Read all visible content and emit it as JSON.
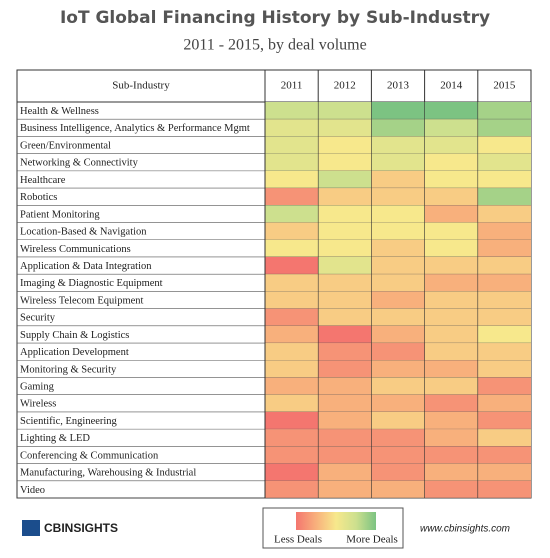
{
  "chart_data": {
    "type": "heatmap",
    "title": "IoT Global Financing History by Sub-Industry",
    "subtitle": "2011 - 2015, by deal volume",
    "row_header": "Sub-Industry",
    "x": [
      "2011",
      "2012",
      "2013",
      "2014",
      "2015"
    ],
    "categories": [
      "Health & Wellness",
      "Business Intelligence, Analytics & Performance Mgmt",
      "Green/Environmental",
      "Networking & Connectivity",
      "Healthcare",
      "Robotics",
      "Patient Monitoring",
      "Location-Based & Navigation",
      "Wireless Communications",
      "Application & Data Integration",
      "Imaging & Diagnostic Equipment",
      "Wireless Telecom Equipment",
      "Security",
      "Supply Chain & Logistics",
      "Application Development",
      "Monitoring & Security",
      "Gaming",
      "Wireless",
      "Scientific, Engineering",
      "Lighting & LED",
      "Conferencing & Communication",
      "Manufacturing, Warehousing & Industrial",
      "Video"
    ],
    "values": [
      [
        7,
        7,
        9,
        9,
        8
      ],
      [
        6,
        6,
        8,
        7,
        8
      ],
      [
        6,
        5,
        6,
        6,
        5
      ],
      [
        6,
        5,
        6,
        5,
        6
      ],
      [
        5,
        7,
        4,
        5,
        5
      ],
      [
        2,
        4,
        4,
        4,
        8
      ],
      [
        7,
        5,
        5,
        3,
        4
      ],
      [
        4,
        5,
        5,
        5,
        3
      ],
      [
        5,
        5,
        4,
        5,
        3
      ],
      [
        1,
        6,
        4,
        4,
        4
      ],
      [
        4,
        4,
        4,
        3,
        3
      ],
      [
        4,
        4,
        3,
        4,
        4
      ],
      [
        2,
        4,
        4,
        4,
        4
      ],
      [
        3,
        1,
        3,
        4,
        5
      ],
      [
        4,
        2,
        2,
        4,
        4
      ],
      [
        4,
        2,
        3,
        3,
        4
      ],
      [
        3,
        3,
        4,
        4,
        2
      ],
      [
        4,
        3,
        3,
        2,
        3
      ],
      [
        1,
        3,
        4,
        3,
        2
      ],
      [
        2,
        2,
        2,
        3,
        4
      ],
      [
        2,
        2,
        2,
        2,
        2
      ],
      [
        1,
        3,
        2,
        3,
        3
      ],
      [
        2,
        3,
        3,
        2,
        2
      ]
    ],
    "zlim": [
      1,
      9
    ],
    "colorscale": [
      "#f4766f",
      "#f8b07c",
      "#f7e88c",
      "#cde08e",
      "#7cc382"
    ],
    "legend_low": "Less Deals",
    "legend_high": "More Deals",
    "logo": "CBINSIGHTS",
    "watermark": "www.cbinsights.com"
  }
}
